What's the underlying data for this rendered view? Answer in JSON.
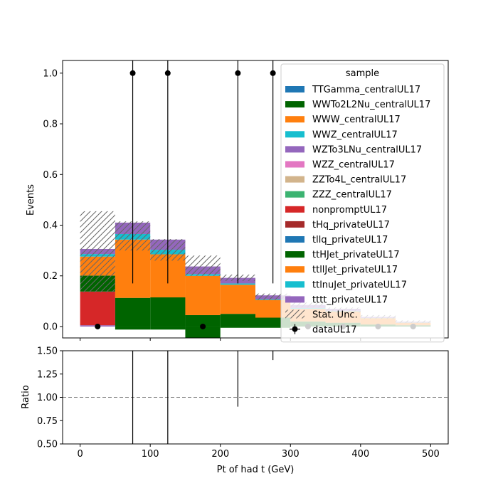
{
  "chart_data": [
    {
      "type": "bar",
      "stacked": true,
      "xlabel": "",
      "ylabel": "Events",
      "xlim": [
        -25,
        525
      ],
      "ylim": [
        -0.045,
        1.05
      ],
      "yticks": [
        0.0,
        0.2,
        0.4,
        0.6,
        0.8,
        1.0
      ],
      "ytick_labels": [
        "0.0",
        "0.2",
        "0.4",
        "0.6",
        "0.8",
        "1.0"
      ],
      "bin_edges": [
        0,
        50,
        100,
        150,
        200,
        250,
        300,
        350,
        400,
        450,
        500
      ],
      "series": [
        {
          "name": "TTGamma_centralUL17",
          "color": "#1f77b4",
          "values": [
            0,
            0,
            0,
            0,
            0,
            0,
            0,
            0,
            0,
            0
          ]
        },
        {
          "name": "WWTo2L2Nu_centralUL17",
          "color": "#006400",
          "values": [
            0,
            0,
            0,
            0,
            0,
            0,
            0,
            0,
            0,
            0
          ]
        },
        {
          "name": "WWW_centralUL17",
          "color": "#ff7f0e",
          "values": [
            0,
            0,
            0,
            0,
            0,
            0,
            0,
            0,
            0,
            0
          ]
        },
        {
          "name": "WWZ_centralUL17",
          "color": "#17becf",
          "values": [
            0,
            0,
            0,
            0,
            0,
            0,
            0,
            0,
            0,
            0
          ]
        },
        {
          "name": "WZTo3LNu_centralUL17",
          "color": "#9467bd",
          "values": [
            0.005,
            0,
            0,
            0,
            0,
            0,
            0,
            0,
            0,
            0
          ]
        },
        {
          "name": "WZZ_centralUL17",
          "color": "#e377c2",
          "values": [
            0,
            0,
            0,
            0,
            0,
            0,
            0,
            0,
            0,
            0
          ]
        },
        {
          "name": "ZZTo4L_centralUL17",
          "color": "#d2b48c",
          "values": [
            0,
            0,
            0,
            0,
            0,
            0,
            0,
            0,
            0,
            0
          ]
        },
        {
          "name": "ZZZ_centralUL17",
          "color": "#3cb371",
          "values": [
            0,
            0,
            0,
            0,
            0,
            0,
            0,
            0,
            0,
            0
          ]
        },
        {
          "name": "nonpromptUL17",
          "color": "#d62728",
          "values": [
            0.133,
            0,
            0,
            0,
            0,
            0,
            0,
            0,
            0,
            0
          ]
        },
        {
          "name": "tHq_privateUL17",
          "color": "#a52a2a",
          "values": [
            0,
            0,
            0,
            0,
            0,
            0,
            0,
            0,
            0,
            0
          ]
        },
        {
          "name": "tllq_privateUL17",
          "color": "#1f77b4",
          "values": [
            0,
            0,
            0,
            0,
            0,
            0,
            0,
            0,
            0,
            0
          ]
        },
        {
          "name": "ttHJet_privateUL17",
          "color": "#006400",
          "values": [
            0.063,
            0.113,
            0.115,
            0.045,
            0.05,
            0.035,
            0.02,
            0.015,
            0.008,
            0.005
          ]
        },
        {
          "name": "ttllJet_privateUL17",
          "color": "#ff7f0e",
          "values": [
            0.075,
            0.23,
            0.17,
            0.155,
            0.115,
            0.07,
            0.05,
            0.045,
            0.025,
            0.01
          ]
        },
        {
          "name": "ttlnuJet_privateUL17",
          "color": "#17becf",
          "values": [
            0.01,
            0.022,
            0.018,
            0.007,
            0.005,
            0.003,
            0.003,
            0.002,
            0.001,
            0.001
          ]
        },
        {
          "name": "tttt_privateUL17",
          "color": "#9467bd",
          "values": [
            0.02,
            0.045,
            0.04,
            0.03,
            0.022,
            0.015,
            0.012,
            0.008,
            0.004,
            0.003
          ]
        }
      ],
      "negative_fill": {
        "series": "ttHJet_privateUL17",
        "values": [
          0,
          -0.012,
          -0.012,
          -0.045,
          -0.005,
          -0.005,
          0,
          0,
          0,
          0
        ]
      },
      "stat_unc": {
        "name": "Stat. Unc.",
        "low": [
          0.135,
          0.3,
          0.26,
          0.2,
          0.18,
          0.105,
          0.075,
          0.055,
          0.03,
          0.014
        ],
        "high": [
          0.455,
          0.415,
          0.345,
          0.28,
          0.205,
          0.13,
          0.095,
          0.075,
          0.045,
          0.024
        ]
      },
      "data": {
        "name": "dataUL17",
        "x": [
          25,
          75,
          125,
          175,
          225,
          275,
          325,
          375,
          425,
          475
        ],
        "y": [
          0,
          1,
          1,
          0,
          1,
          1,
          0,
          0,
          0,
          0
        ],
        "yerr_low": [
          0,
          0.83,
          0.83,
          0,
          0.83,
          0.83,
          0,
          0,
          0,
          0
        ],
        "yerr_high": [
          0,
          1.3,
          1.3,
          0,
          1.3,
          1.3,
          0,
          0,
          0,
          0
        ]
      },
      "legend": {
        "title": "sample",
        "placement": "top-right"
      }
    },
    {
      "type": "scatter",
      "xlabel": "Pt of had t (GeV)",
      "ylabel": "Ratio",
      "xlim": [
        -25,
        525
      ],
      "ylim": [
        0.5,
        1.5
      ],
      "xticks": [
        0,
        100,
        200,
        300,
        400,
        500
      ],
      "xtick_labels": [
        "0",
        "100",
        "200",
        "300",
        "400",
        "500"
      ],
      "yticks": [
        0.5,
        0.75,
        1.0,
        1.25,
        1.5
      ],
      "ytick_labels": [
        "0.50",
        "0.75",
        "1.00",
        "1.25",
        "1.50"
      ],
      "reference_line": 1.0,
      "error_bars": [
        {
          "x": 75,
          "low": 0.0,
          "high": 3.0
        },
        {
          "x": 125,
          "low": 0.0,
          "high": 3.0
        },
        {
          "x": 225,
          "low": 0.9,
          "high": 6.0
        },
        {
          "x": 275,
          "low": 1.4,
          "high": 1.55
        }
      ]
    }
  ]
}
